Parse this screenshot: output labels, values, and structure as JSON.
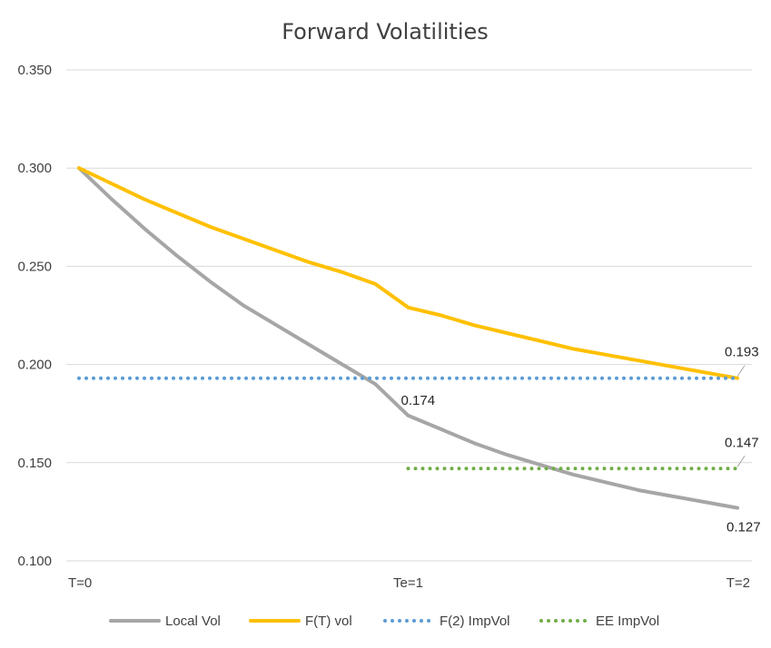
{
  "chart_data": {
    "type": "line",
    "title": "Forward Volatilities",
    "x_domain": [
      0,
      2
    ],
    "x_ticks": [
      {
        "x": 0,
        "label": "T=0"
      },
      {
        "x": 1,
        "label": "Te=1"
      },
      {
        "x": 2,
        "label": "T=2"
      }
    ],
    "ylim": [
      0.1,
      0.35
    ],
    "y_ticks": [
      "0.100",
      "0.150",
      "0.200",
      "0.250",
      "0.300",
      "0.350"
    ],
    "grid": true,
    "legend_position": "bottom",
    "series": [
      {
        "name": "Local Vol",
        "style": "solid",
        "color": "#a6a6a6",
        "points": [
          [
            0,
            0.3
          ],
          [
            0.1,
            0.284
          ],
          [
            0.2,
            0.269
          ],
          [
            0.3,
            0.255
          ],
          [
            0.4,
            0.242
          ],
          [
            0.5,
            0.23
          ],
          [
            0.6,
            0.22
          ],
          [
            0.7,
            0.21
          ],
          [
            0.8,
            0.2
          ],
          [
            0.9,
            0.19
          ],
          [
            1.0,
            0.174
          ],
          [
            1.1,
            0.167
          ],
          [
            1.2,
            0.16
          ],
          [
            1.3,
            0.154
          ],
          [
            1.4,
            0.149
          ],
          [
            1.5,
            0.144
          ],
          [
            1.6,
            0.14
          ],
          [
            1.7,
            0.136
          ],
          [
            1.8,
            0.133
          ],
          [
            1.9,
            0.13
          ],
          [
            2.0,
            0.127
          ]
        ]
      },
      {
        "name": "F(T) vol",
        "style": "solid",
        "color": "#ffc000",
        "points": [
          [
            0,
            0.3
          ],
          [
            0.1,
            0.292
          ],
          [
            0.2,
            0.284
          ],
          [
            0.3,
            0.277
          ],
          [
            0.4,
            0.27
          ],
          [
            0.5,
            0.264
          ],
          [
            0.6,
            0.258
          ],
          [
            0.7,
            0.252
          ],
          [
            0.8,
            0.247
          ],
          [
            0.9,
            0.241
          ],
          [
            1.0,
            0.229
          ],
          [
            1.1,
            0.225
          ],
          [
            1.2,
            0.22
          ],
          [
            1.3,
            0.216
          ],
          [
            1.4,
            0.212
          ],
          [
            1.5,
            0.208
          ],
          [
            1.6,
            0.205
          ],
          [
            1.7,
            0.202
          ],
          [
            1.8,
            0.199
          ],
          [
            1.9,
            0.196
          ],
          [
            2.0,
            0.193
          ]
        ]
      },
      {
        "name": "F(2) ImpVol",
        "style": "dotted",
        "color": "#5b9bd5",
        "points": [
          [
            0,
            0.193
          ],
          [
            2,
            0.193
          ]
        ]
      },
      {
        "name": "EE ImpVol",
        "style": "dotted",
        "color": "#70ad47",
        "points": [
          [
            1,
            0.147
          ],
          [
            2,
            0.147
          ]
        ]
      }
    ],
    "data_labels": [
      {
        "series": "Local Vol",
        "x": 1,
        "y": 0.174,
        "text": "0.174"
      },
      {
        "series": "Local Vol",
        "x": 2,
        "y": 0.127,
        "text": "0.127"
      },
      {
        "series": "F(T) vol",
        "x": 2,
        "y": 0.193,
        "text": "0.193"
      },
      {
        "series": "EE ImpVol",
        "x": 2,
        "y": 0.147,
        "text": "0.147"
      }
    ]
  }
}
